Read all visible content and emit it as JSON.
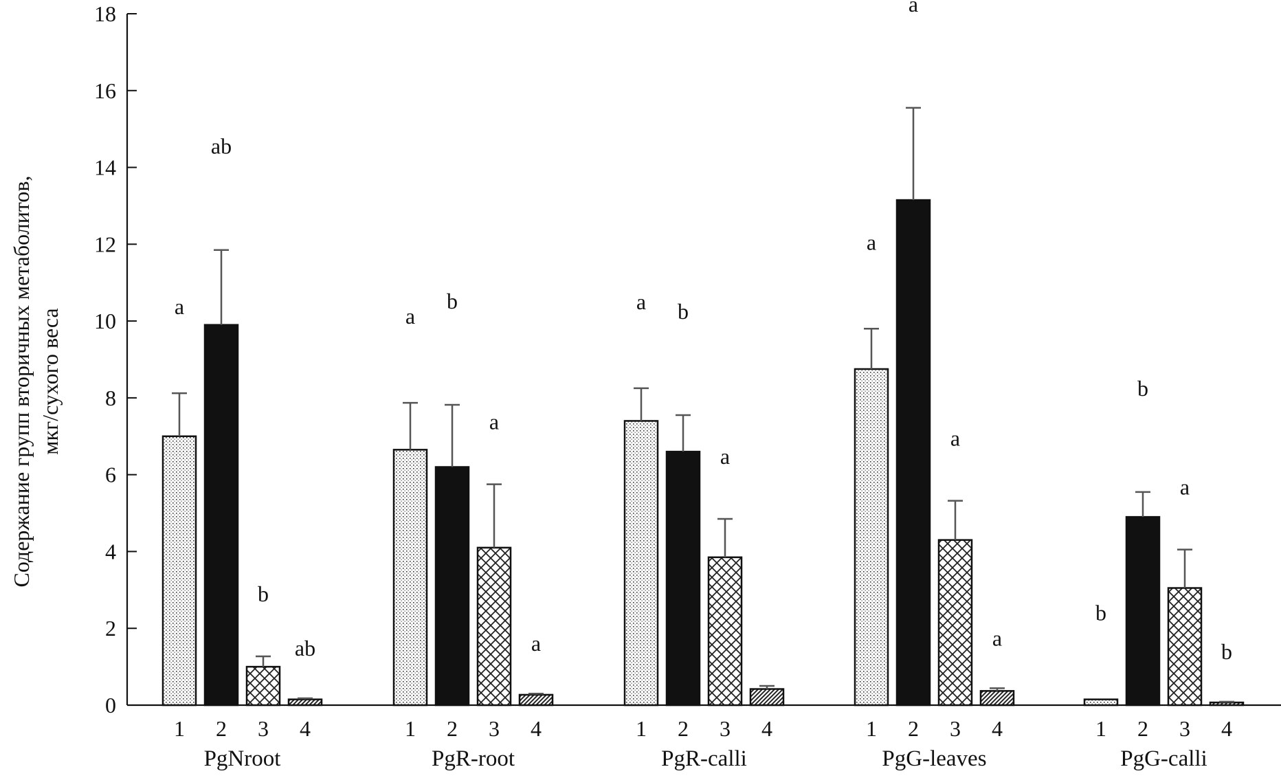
{
  "chart_data": {
    "type": "bar",
    "title": "",
    "ylabel_lines": [
      "Содержание групп вторичных метаболитов,",
      "мкг/сухого веса"
    ],
    "xlabel": "",
    "ylim": [
      0,
      18
    ],
    "yticks": [
      0,
      2,
      4,
      6,
      8,
      10,
      12,
      14,
      16,
      18
    ],
    "categories": [
      "1",
      "2",
      "3",
      "4"
    ],
    "groups": [
      {
        "name": "PgNroot",
        "values": [
          7.0,
          9.9,
          1.0,
          0.15
        ],
        "errors": [
          1.12,
          1.95,
          0.27,
          0.03
        ],
        "labels": [
          "a",
          "ab",
          "b",
          "ab"
        ]
      },
      {
        "name": "PgR-root",
        "values": [
          6.65,
          6.2,
          4.1,
          0.27
        ],
        "errors": [
          1.22,
          1.62,
          1.65,
          0.03
        ],
        "labels": [
          "a",
          "b",
          "a",
          "a"
        ]
      },
      {
        "name": "PgR-calli",
        "values": [
          7.4,
          6.6,
          3.85,
          0.42
        ],
        "errors": [
          0.85,
          0.95,
          1.0,
          0.08
        ],
        "labels": [
          "a",
          "b",
          "a",
          ""
        ]
      },
      {
        "name": "PgG-leaves",
        "values": [
          8.75,
          13.15,
          4.3,
          0.37
        ],
        "errors": [
          1.05,
          2.4,
          1.02,
          0.07
        ],
        "labels": [
          "a",
          "a",
          "a",
          "a"
        ]
      },
      {
        "name": "PgG-calli",
        "values": [
          0.15,
          4.9,
          3.05,
          0.07
        ],
        "errors": [
          0.0,
          0.65,
          1.0,
          0.02
        ],
        "labels": [
          "b",
          "b",
          "a",
          "b"
        ]
      }
    ],
    "patterns": [
      "dotted",
      "solid-black",
      "crosshatch",
      "diagonal-lines"
    ],
    "legend": "none",
    "grid": false
  }
}
